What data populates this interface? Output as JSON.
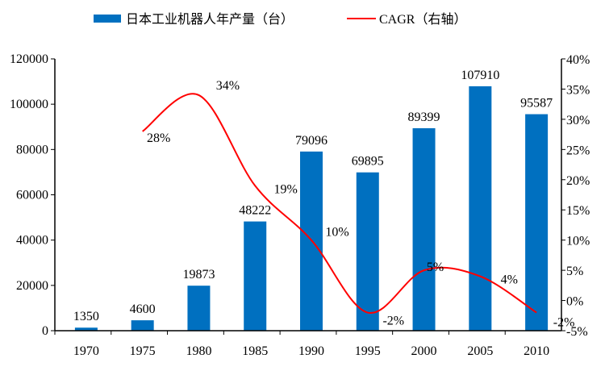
{
  "chart_data": {
    "type": "bar+line",
    "categories": [
      "1970",
      "1975",
      "1980",
      "1985",
      "1990",
      "1995",
      "2000",
      "2005",
      "2010"
    ],
    "series": [
      {
        "name": "日本工业机器人年产量（台）",
        "type": "bar",
        "axis": "left",
        "color": "#0070C0",
        "values": [
          1350,
          4600,
          19873,
          48222,
          79096,
          69895,
          89399,
          107910,
          95587
        ]
      },
      {
        "name": "CAGR（右轴）",
        "type": "line",
        "axis": "right",
        "color": "#FF0000",
        "values": [
          null,
          28,
          34,
          19,
          10,
          -2,
          5,
          4,
          -2
        ],
        "labels": [
          "",
          "28%",
          "34%",
          "19%",
          "10%",
          "-2%",
          "5%",
          "4%",
          "-2%"
        ]
      }
    ],
    "left_axis": {
      "min": 0,
      "max": 120000,
      "ticks": [
        "0",
        "20000",
        "40000",
        "60000",
        "80000",
        "100000",
        "120000"
      ]
    },
    "right_axis": {
      "min": -5,
      "max": 40,
      "unit": "%",
      "ticks": [
        "-5%",
        "0%",
        "5%",
        "10%",
        "15%",
        "20%",
        "25%",
        "30%",
        "35%",
        "40%"
      ]
    },
    "grid": false,
    "legend": "top"
  }
}
